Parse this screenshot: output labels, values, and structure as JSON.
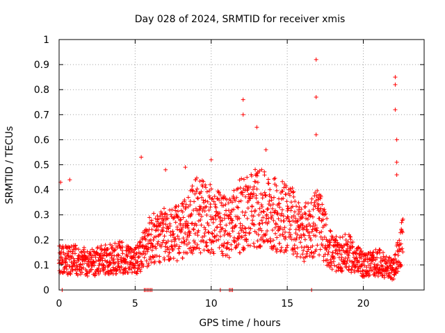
{
  "chart_data": {
    "type": "scatter",
    "title": "Day 028 of 2024, SRMTID for receiver xmis",
    "xlabel": "GPS time / hours",
    "ylabel": "SRMTID / TECUs",
    "xlim": [
      0,
      24
    ],
    "ylim": [
      0,
      1
    ],
    "xticks": [
      0,
      5,
      10,
      15,
      20
    ],
    "xtick_labels": [
      "0",
      "5",
      "10",
      "15",
      "20"
    ],
    "yticks": [
      0,
      0.1,
      0.2,
      0.3,
      0.4,
      0.5,
      0.6,
      0.7,
      0.8,
      0.9,
      1
    ],
    "ytick_labels": [
      "0",
      "0.1",
      "0.2",
      "0.3",
      "0.4",
      "0.5",
      "0.6",
      "0.7",
      "0.8",
      "0.9",
      "1"
    ],
    "grid": true,
    "marker": "+",
    "marker_color": "#ff0000",
    "approximate_trend": [
      {
        "t_hour": 0.0,
        "y": 0.12
      },
      {
        "t_hour": 1.0,
        "y": 0.12
      },
      {
        "t_hour": 2.0,
        "y": 0.11
      },
      {
        "t_hour": 3.0,
        "y": 0.12
      },
      {
        "t_hour": 4.0,
        "y": 0.13
      },
      {
        "t_hour": 5.0,
        "y": 0.11
      },
      {
        "t_hour": 6.0,
        "y": 0.2
      },
      {
        "t_hour": 7.0,
        "y": 0.22
      },
      {
        "t_hour": 8.0,
        "y": 0.23
      },
      {
        "t_hour": 9.0,
        "y": 0.3
      },
      {
        "t_hour": 10.0,
        "y": 0.28
      },
      {
        "t_hour": 11.0,
        "y": 0.25
      },
      {
        "t_hour": 12.0,
        "y": 0.3
      },
      {
        "t_hour": 13.0,
        "y": 0.33
      },
      {
        "t_hour": 14.0,
        "y": 0.3
      },
      {
        "t_hour": 15.0,
        "y": 0.3
      },
      {
        "t_hour": 16.0,
        "y": 0.22
      },
      {
        "t_hour": 17.0,
        "y": 0.28
      },
      {
        "t_hour": 18.0,
        "y": 0.14
      },
      {
        "t_hour": 19.0,
        "y": 0.15
      },
      {
        "t_hour": 20.0,
        "y": 0.1
      },
      {
        "t_hour": 21.0,
        "y": 0.11
      },
      {
        "t_hour": 22.0,
        "y": 0.08
      },
      {
        "t_hour": 22.6,
        "y": 0.2
      }
    ],
    "notable_points": [
      {
        "t_hour": 0.1,
        "y": 0.43
      },
      {
        "t_hour": 0.7,
        "y": 0.44
      },
      {
        "t_hour": 5.4,
        "y": 0.53
      },
      {
        "t_hour": 7.0,
        "y": 0.48
      },
      {
        "t_hour": 8.3,
        "y": 0.49
      },
      {
        "t_hour": 10.0,
        "y": 0.52
      },
      {
        "t_hour": 12.1,
        "y": 0.76
      },
      {
        "t_hour": 12.1,
        "y": 0.7
      },
      {
        "t_hour": 13.0,
        "y": 0.65
      },
      {
        "t_hour": 13.6,
        "y": 0.56
      },
      {
        "t_hour": 16.9,
        "y": 0.92
      },
      {
        "t_hour": 16.9,
        "y": 0.77
      },
      {
        "t_hour": 16.9,
        "y": 0.62
      },
      {
        "t_hour": 22.1,
        "y": 0.85
      },
      {
        "t_hour": 22.1,
        "y": 0.82
      },
      {
        "t_hour": 22.1,
        "y": 0.72
      },
      {
        "t_hour": 22.2,
        "y": 0.6
      },
      {
        "t_hour": 22.2,
        "y": 0.51
      },
      {
        "t_hour": 22.2,
        "y": 0.46
      }
    ],
    "zero_value_hours": [
      0.2,
      5.6,
      5.7,
      5.8,
      5.9,
      6.0,
      6.1,
      10.6,
      11.2,
      11.3,
      11.4,
      16.6
    ]
  }
}
